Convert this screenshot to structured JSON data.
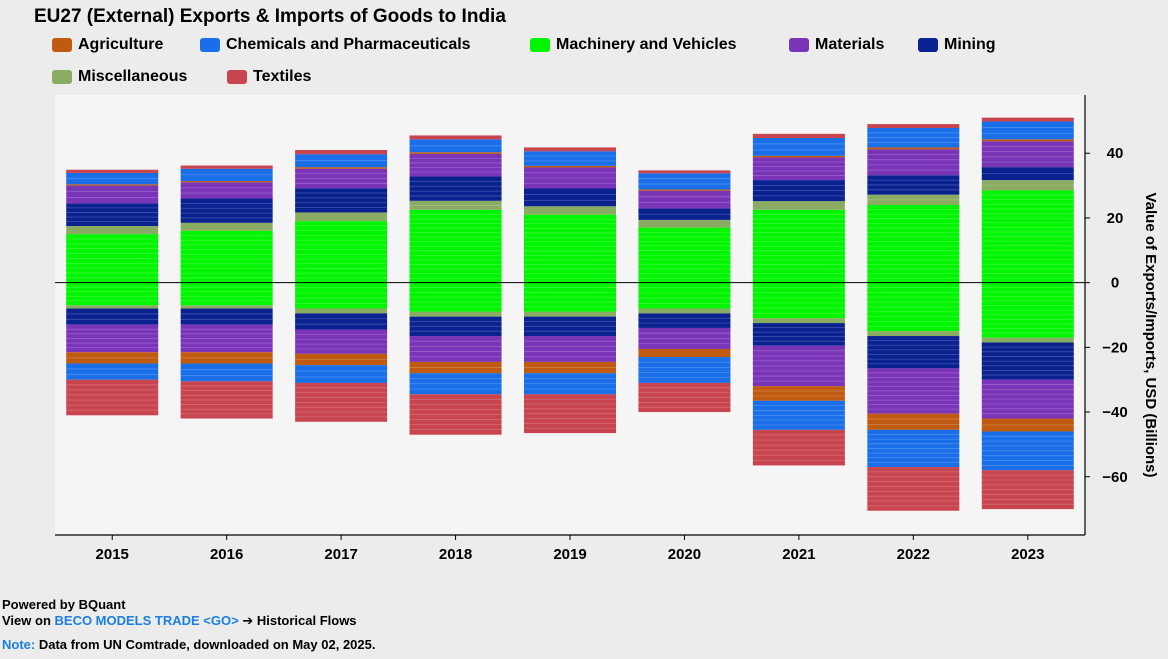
{
  "footer": {
    "powered": "Powered by BQuant",
    "view_prefix": "View on",
    "view_link": "BECO MODELS TRADE <GO>",
    "view_suffix": "➔ Historical Flows",
    "note_label": "Note:",
    "note_text": "Data from UN Comtrade, downloaded on May 02, 2025."
  },
  "chart_data": {
    "type": "bar",
    "stacked": true,
    "diverging": true,
    "title": "EU27 (External) Exports & Imports of Goods to India",
    "ylabel": "Value of Exports/Imports, USD (Billions)",
    "ylim": [
      -78,
      58
    ],
    "yticks": [
      40,
      20,
      0,
      -20,
      -40,
      -60
    ],
    "ytick_labels": [
      "40",
      "20",
      "0",
      "−20",
      "−40",
      "−60"
    ],
    "y_axis_side": "right",
    "legend_position": "top",
    "categories": [
      "2015",
      "2016",
      "2017",
      "2018",
      "2019",
      "2020",
      "2021",
      "2022",
      "2023"
    ],
    "series": [
      {
        "name": "Agriculture",
        "color": "#c05a10",
        "exports": [
          0.4,
          0.4,
          0.5,
          0.5,
          0.5,
          0.4,
          0.5,
          0.6,
          0.6
        ],
        "imports": [
          -3.5,
          -3.5,
          -3.5,
          -3.5,
          -3.5,
          -2.5,
          -4.5,
          -5,
          -4
        ]
      },
      {
        "name": "Chemicals and Pharmaceuticals",
        "color": "#1a6fe8",
        "exports": [
          3.5,
          3.8,
          4,
          4,
          4.5,
          5,
          5.5,
          6,
          5.5
        ],
        "imports": [
          -5,
          -5.5,
          -5.5,
          -6.5,
          -6.5,
          -8,
          -9,
          -11.5,
          -12
        ]
      },
      {
        "name": "Machinery and Vehicles",
        "color": "#00f500",
        "exports": [
          15,
          16,
          19,
          22.5,
          21,
          17,
          22.5,
          24,
          28.5
        ],
        "imports": [
          -7,
          -7,
          -8,
          -9,
          -9,
          -8,
          -11,
          -15,
          -17
        ]
      },
      {
        "name": "Materials",
        "color": "#7a34b8",
        "exports": [
          5.5,
          5,
          6,
          7,
          6.5,
          5.5,
          7,
          8,
          8
        ],
        "imports": [
          -8.5,
          -8.5,
          -7.5,
          -8,
          -8,
          -6.5,
          -12.5,
          -14,
          -12
        ]
      },
      {
        "name": "Mining",
        "color": "#0a2290",
        "exports": [
          7,
          7.5,
          7.5,
          7.5,
          5.5,
          3.5,
          6.5,
          6,
          4
        ],
        "imports": [
          -5,
          -5,
          -5,
          -6,
          -6,
          -4.5,
          -7,
          -10,
          -11.5
        ]
      },
      {
        "name": "Miscellaneous",
        "color": "#8aac62",
        "exports": [
          2.5,
          2.5,
          2.7,
          2.8,
          2.6,
          2.4,
          2.7,
          3.2,
          3.2
        ],
        "imports": [
          -1,
          -1,
          -1.5,
          -1.5,
          -1.5,
          -1.5,
          -1.5,
          -1.5,
          -1.5
        ]
      },
      {
        "name": "Textiles",
        "color": "#c8444e",
        "exports": [
          1,
          1,
          1.3,
          1.2,
          1.2,
          0.9,
          1.3,
          1.2,
          1.2
        ],
        "imports": [
          -11,
          -11.5,
          -12,
          -12.5,
          -12,
          -9,
          -11,
          -13.5,
          -12
        ]
      }
    ]
  }
}
